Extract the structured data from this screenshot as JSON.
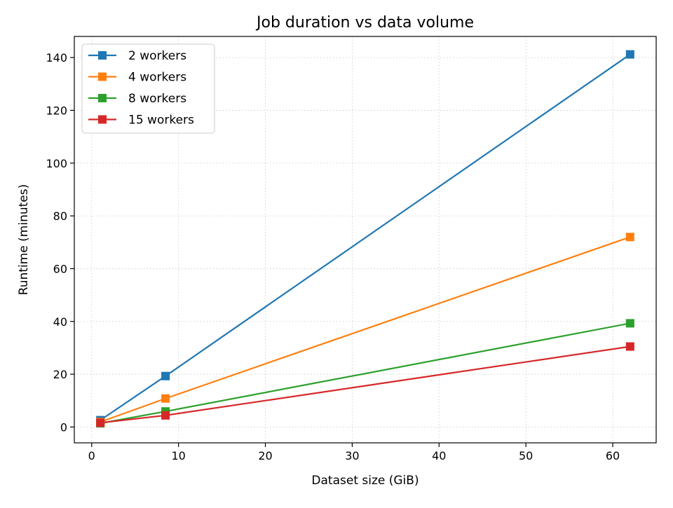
{
  "chart_data": {
    "type": "line",
    "title": "Job duration vs data volume",
    "xlabel": "Dataset size (GiB)",
    "ylabel": "Runtime (minutes)",
    "xlim": [
      -2,
      65
    ],
    "ylim": [
      -6,
      148
    ],
    "xticks": [
      0,
      10,
      20,
      30,
      40,
      50,
      60
    ],
    "yticks": [
      0,
      20,
      40,
      60,
      80,
      100,
      120,
      140
    ],
    "grid": true,
    "legend_position": "upper left",
    "x": [
      1,
      8.5,
      62
    ],
    "series": [
      {
        "name": "2 workers",
        "color": "#1f77b4",
        "marker": "square",
        "values": [
          2.6,
          19.3,
          141.2
        ]
      },
      {
        "name": "4 workers",
        "color": "#ff7f0e",
        "marker": "square",
        "values": [
          1.9,
          10.8,
          72.0
        ]
      },
      {
        "name": "8 workers",
        "color": "#2ca02c",
        "marker": "square",
        "values": [
          1.4,
          5.9,
          39.3
        ]
      },
      {
        "name": "15 workers",
        "color": "#d62728",
        "marker": "square",
        "values": [
          1.6,
          4.4,
          30.5
        ]
      }
    ]
  }
}
